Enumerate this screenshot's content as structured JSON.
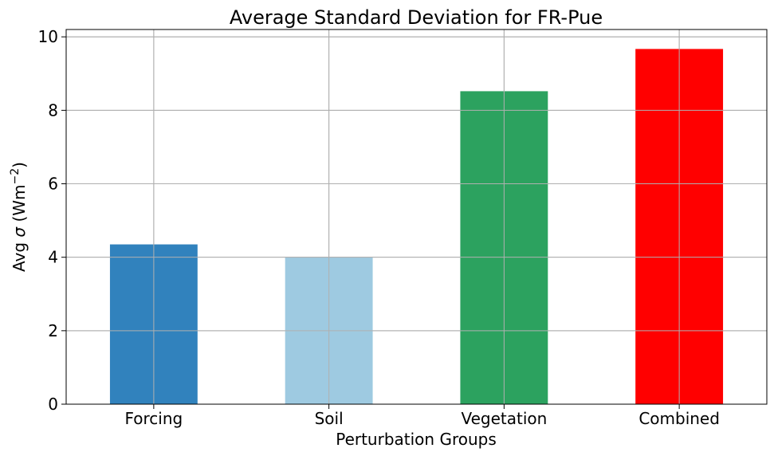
{
  "chart_data": {
    "type": "bar",
    "title": "Average Standard Deviation for FR-Pue",
    "xlabel": "Perturbation Groups",
    "ylabel_prefix": "Avg ",
    "ylabel_symbol": "σ",
    "ylabel_unit_open": " (Wm",
    "ylabel_unit_exp": "−2",
    "ylabel_unit_close": ")",
    "categories": [
      "Forcing",
      "Soil",
      "Vegetation",
      "Combined"
    ],
    "values": [
      4.35,
      4.0,
      8.52,
      9.67
    ],
    "colors": [
      "#3182bd",
      "#9ecae1",
      "#2ca25f",
      "#ff0000"
    ],
    "ylim": [
      0,
      10.2
    ],
    "yticks": [
      0,
      2,
      4,
      6,
      8,
      10
    ],
    "grid": true
  }
}
